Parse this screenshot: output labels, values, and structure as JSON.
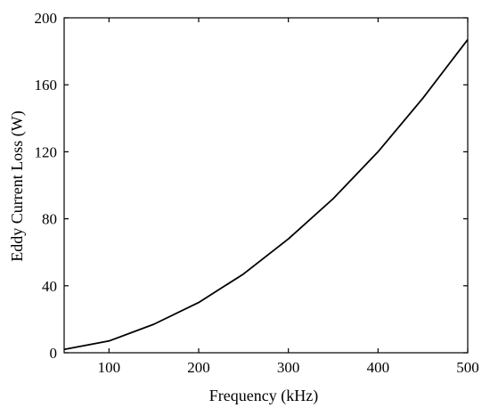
{
  "chart_data": {
    "type": "line",
    "title": "",
    "xlabel": "Frequency (kHz)",
    "ylabel": "Eddy Current Loss (W)",
    "xlim": [
      50,
      500
    ],
    "ylim": [
      0,
      200
    ],
    "x_ticks": [
      100,
      200,
      300,
      400,
      500
    ],
    "y_ticks": [
      0,
      40,
      80,
      120,
      160,
      200
    ],
    "x_tick_labels": [
      "100",
      "200",
      "300",
      "400",
      "500"
    ],
    "y_tick_labels": [
      "0",
      "40",
      "80",
      "120",
      "160",
      "200"
    ],
    "grid": false,
    "legend": "none",
    "series": [
      {
        "color": "#000000",
        "x": [
          50,
          100,
          150,
          200,
          250,
          300,
          350,
          400,
          450,
          500
        ],
        "y": [
          2,
          7,
          17,
          30,
          47,
          68,
          92,
          120,
          152,
          187
        ]
      }
    ]
  }
}
